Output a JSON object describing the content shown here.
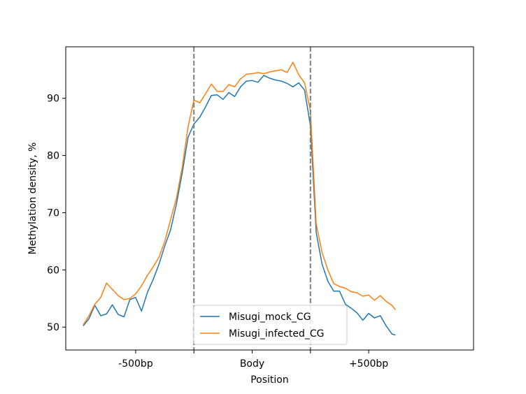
{
  "chart_data": {
    "type": "line",
    "title": "",
    "xlabel": "Position",
    "ylabel": "Methylation density, %",
    "x_range": [
      -0.1,
      3.4
    ],
    "ylim": [
      46,
      99
    ],
    "region_boundaries": [
      1,
      2
    ],
    "x_ticks": [
      {
        "x": 0.5,
        "label": "-500bp"
      },
      {
        "x": 1.0,
        "label": ""
      },
      {
        "x": 1.5,
        "label": "Body"
      },
      {
        "x": 2.0,
        "label": ""
      },
      {
        "x": 2.5,
        "label": "+500bp"
      }
    ],
    "y_ticks": [
      50,
      60,
      70,
      80,
      90
    ],
    "legend_position": "lower-center",
    "grid": false,
    "series": [
      {
        "name": "Misugi_mock_CG",
        "color": "#1f77b4",
        "points": [
          [
            0.05,
            50.2
          ],
          [
            0.1,
            51.5
          ],
          [
            0.15,
            53.8
          ],
          [
            0.2,
            52.0
          ],
          [
            0.25,
            52.3
          ],
          [
            0.3,
            53.9
          ],
          [
            0.35,
            52.2
          ],
          [
            0.4,
            51.8
          ],
          [
            0.45,
            54.8
          ],
          [
            0.5,
            55.2
          ],
          [
            0.55,
            52.8
          ],
          [
            0.6,
            56.0
          ],
          [
            0.65,
            58.3
          ],
          [
            0.7,
            61.0
          ],
          [
            0.75,
            64.2
          ],
          [
            0.8,
            67.0
          ],
          [
            0.85,
            71.5
          ],
          [
            0.9,
            77.0
          ],
          [
            0.95,
            83.2
          ],
          [
            1.0,
            85.5
          ],
          [
            1.05,
            86.7
          ],
          [
            1.1,
            88.5
          ],
          [
            1.15,
            90.5
          ],
          [
            1.2,
            90.6
          ],
          [
            1.25,
            89.8
          ],
          [
            1.3,
            91.0
          ],
          [
            1.35,
            90.3
          ],
          [
            1.4,
            92.0
          ],
          [
            1.45,
            93.0
          ],
          [
            1.5,
            93.1
          ],
          [
            1.55,
            92.8
          ],
          [
            1.6,
            94.0
          ],
          [
            1.65,
            93.5
          ],
          [
            1.7,
            93.2
          ],
          [
            1.75,
            93.0
          ],
          [
            1.8,
            92.6
          ],
          [
            1.85,
            92.0
          ],
          [
            1.9,
            92.7
          ],
          [
            1.95,
            91.4
          ],
          [
            2.0,
            85.2
          ],
          [
            2.05,
            66.5
          ],
          [
            2.1,
            61.0
          ],
          [
            2.15,
            58.0
          ],
          [
            2.2,
            56.3
          ],
          [
            2.25,
            56.3
          ],
          [
            2.3,
            54.0
          ],
          [
            2.35,
            53.3
          ],
          [
            2.4,
            52.5
          ],
          [
            2.45,
            51.2
          ],
          [
            2.5,
            52.4
          ],
          [
            2.55,
            51.6
          ],
          [
            2.6,
            52.0
          ],
          [
            2.65,
            50.2
          ],
          [
            2.7,
            48.8
          ],
          [
            2.73,
            48.6
          ]
        ]
      },
      {
        "name": "Misugi_infected_CG",
        "color": "#ff7f0e",
        "points": [
          [
            0.05,
            50.4
          ],
          [
            0.1,
            52.0
          ],
          [
            0.15,
            54.0
          ],
          [
            0.2,
            55.2
          ],
          [
            0.25,
            57.7
          ],
          [
            0.3,
            56.6
          ],
          [
            0.35,
            55.5
          ],
          [
            0.4,
            54.8
          ],
          [
            0.45,
            55.0
          ],
          [
            0.5,
            55.8
          ],
          [
            0.55,
            57.2
          ],
          [
            0.6,
            59.0
          ],
          [
            0.65,
            60.5
          ],
          [
            0.7,
            62.2
          ],
          [
            0.75,
            65.0
          ],
          [
            0.8,
            68.8
          ],
          [
            0.85,
            72.5
          ],
          [
            0.9,
            78.0
          ],
          [
            0.95,
            85.0
          ],
          [
            1.0,
            89.7
          ],
          [
            1.05,
            89.2
          ],
          [
            1.1,
            90.8
          ],
          [
            1.15,
            92.5
          ],
          [
            1.2,
            91.2
          ],
          [
            1.25,
            91.2
          ],
          [
            1.3,
            92.4
          ],
          [
            1.35,
            92.0
          ],
          [
            1.4,
            93.4
          ],
          [
            1.45,
            94.2
          ],
          [
            1.5,
            94.3
          ],
          [
            1.55,
            94.5
          ],
          [
            1.6,
            94.3
          ],
          [
            1.65,
            94.6
          ],
          [
            1.7,
            94.8
          ],
          [
            1.75,
            95.0
          ],
          [
            1.8,
            94.5
          ],
          [
            1.85,
            96.3
          ],
          [
            1.9,
            94.1
          ],
          [
            1.95,
            92.7
          ],
          [
            2.0,
            87.8
          ],
          [
            2.05,
            68.0
          ],
          [
            2.1,
            63.0
          ],
          [
            2.15,
            60.0
          ],
          [
            2.2,
            57.6
          ],
          [
            2.25,
            57.1
          ],
          [
            2.3,
            56.8
          ],
          [
            2.35,
            56.2
          ],
          [
            2.4,
            56.0
          ],
          [
            2.45,
            55.4
          ],
          [
            2.5,
            55.6
          ],
          [
            2.55,
            54.7
          ],
          [
            2.6,
            55.5
          ],
          [
            2.65,
            54.5
          ],
          [
            2.7,
            53.8
          ],
          [
            2.73,
            53.0
          ]
        ]
      }
    ]
  }
}
